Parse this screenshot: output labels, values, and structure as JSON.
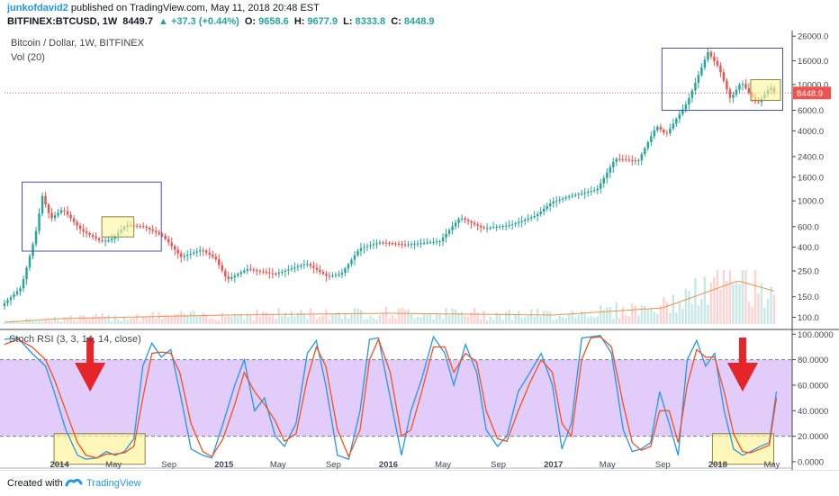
{
  "header": {
    "username": "junkofdavid2",
    "published": "published on TradingView.com, May 11, 2018 20:48 EST",
    "symbol": "BITFINEX:BTCUSD, 1W",
    "last": "8449.7",
    "change": "▲ +37.3 (+0.44%)",
    "o_label": "O:",
    "o": "9658.6",
    "h_label": "H:",
    "h": "9677.9",
    "l_label": "L:",
    "l": "8333.8",
    "c_label": "C:",
    "c": "8448.9"
  },
  "footer": {
    "created_with": "Created with",
    "brand": "TradingView"
  },
  "colors": {
    "up": "#26a69a",
    "down": "#ef5350",
    "rsi_k": "#2196f3",
    "rsi_d": "#f4511e",
    "rsi_band": "#e1ccfa",
    "vol_ma": "#f0904c",
    "box": "#3f51b5",
    "highlight": "#fff59d",
    "arrow": "#e5252a"
  },
  "chart_data": [
    {
      "type": "candlestick",
      "title": "Bitcoin / Dollar, 1W, BITFINEX",
      "subtitle": "Vol (20)",
      "scale": "log",
      "y_ticks": [
        100,
        150,
        250,
        400,
        600,
        1000,
        1600,
        2400,
        4000,
        6000,
        10000,
        16000,
        26000
      ],
      "y_tick_labels": [
        "100.0",
        "150.0",
        "250.0",
        "400.0",
        "600.0",
        "1000.0",
        "1600.0",
        "2400.0",
        "4000.0",
        "6000.0",
        "10000.0",
        "16000.0",
        "26000.0"
      ],
      "last_price": 8448.9,
      "last_price_label": "8448.9",
      "x_labels": [
        "2014",
        "May",
        "Sep",
        "2015",
        "May",
        "Sep",
        "2016",
        "May",
        "Sep",
        "2017",
        "May",
        "Sep",
        "2018",
        "May"
      ],
      "x_label_dates": [
        "2014-01-01",
        "2014-05-01",
        "2014-09-01",
        "2015-01-01",
        "2015-05-01",
        "2015-09-01",
        "2016-01-01",
        "2016-05-01",
        "2016-09-01",
        "2017-01-01",
        "2017-05-01",
        "2017-09-01",
        "2018-01-01",
        "2018-05-01"
      ],
      "x_range": [
        "2013-09-01",
        "2018-06-15"
      ],
      "price_path": [
        [
          "2013-09-01",
          125
        ],
        [
          "2013-10-15",
          180
        ],
        [
          "2013-11-15",
          500
        ],
        [
          "2013-12-01",
          1100
        ],
        [
          "2013-12-20",
          700
        ],
        [
          "2014-01-15",
          850
        ],
        [
          "2014-02-25",
          560
        ],
        [
          "2014-04-10",
          450
        ],
        [
          "2014-05-01",
          460
        ],
        [
          "2014-06-05",
          620
        ],
        [
          "2014-07-15",
          600
        ],
        [
          "2014-08-25",
          500
        ],
        [
          "2014-10-05",
          330
        ],
        [
          "2014-11-20",
          380
        ],
        [
          "2014-12-20",
          320
        ],
        [
          "2015-01-15",
          210
        ],
        [
          "2015-03-01",
          260
        ],
        [
          "2015-05-01",
          235
        ],
        [
          "2015-07-10",
          290
        ],
        [
          "2015-08-25",
          225
        ],
        [
          "2015-09-25",
          235
        ],
        [
          "2015-11-05",
          390
        ],
        [
          "2015-12-20",
          440
        ],
        [
          "2016-02-15",
          420
        ],
        [
          "2016-05-01",
          450
        ],
        [
          "2016-06-15",
          720
        ],
        [
          "2016-08-05",
          580
        ],
        [
          "2016-10-05",
          620
        ],
        [
          "2016-12-01",
          750
        ],
        [
          "2017-01-05",
          980
        ],
        [
          "2017-02-15",
          1100
        ],
        [
          "2017-04-15",
          1250
        ],
        [
          "2017-05-25",
          2300
        ],
        [
          "2017-07-15",
          2200
        ],
        [
          "2017-08-25",
          4400
        ],
        [
          "2017-09-15",
          3700
        ],
        [
          "2017-11-01",
          7000
        ],
        [
          "2017-12-17",
          19000
        ],
        [
          "2018-01-10",
          14000
        ],
        [
          "2018-02-05",
          7500
        ],
        [
          "2018-03-01",
          10500
        ],
        [
          "2018-04-05",
          6800
        ],
        [
          "2018-05-05",
          9600
        ],
        [
          "2018-05-11",
          8449
        ]
      ],
      "volume_ma_path": [
        [
          "2013-09-01",
          1
        ],
        [
          "2014-01-01",
          3
        ],
        [
          "2015-01-01",
          5
        ],
        [
          "2016-01-01",
          6
        ],
        [
          "2017-01-01",
          5
        ],
        [
          "2017-09-01",
          9
        ],
        [
          "2018-02-15",
          24
        ],
        [
          "2018-05-11",
          18
        ]
      ],
      "annotations": [
        {
          "type": "box",
          "from": "2013-10-10",
          "to": "2014-08-15",
          "y_low": 370,
          "y_high": 1450
        },
        {
          "type": "highlight",
          "from": "2014-04-05",
          "to": "2014-06-15",
          "y_low": 490,
          "y_high": 730
        },
        {
          "type": "box",
          "from": "2017-08-30",
          "to": "2018-05-25",
          "y_low": 6000,
          "y_high": 20500
        },
        {
          "type": "highlight",
          "from": "2018-03-15",
          "to": "2018-05-20",
          "y_low": 7300,
          "y_high": 11000
        }
      ]
    },
    {
      "type": "line",
      "title": "Stoch RSI (3, 3, 14, 14, close)",
      "ylim": [
        -5,
        103
      ],
      "band": [
        20,
        80
      ],
      "y_ticks": [
        0,
        20,
        40,
        60,
        80,
        100
      ],
      "y_tick_labels": [
        "0.0000",
        "20.0000",
        "40.0000",
        "60.0000",
        "80.0000",
        "100.0000"
      ],
      "series": [
        {
          "name": "%K",
          "x": [
            "2013-09-01",
            "2013-10-01",
            "2013-11-01",
            "2013-12-01",
            "2013-12-20",
            "2014-01-15",
            "2014-02-10",
            "2014-03-01",
            "2014-03-25",
            "2014-04-15",
            "2014-05-05",
            "2014-05-25",
            "2014-06-15",
            "2014-07-05",
            "2014-07-25",
            "2014-08-15",
            "2014-09-05",
            "2014-09-25",
            "2014-10-20",
            "2014-11-15",
            "2014-12-05",
            "2014-12-30",
            "2015-01-25",
            "2015-02-15",
            "2015-03-10",
            "2015-04-01",
            "2015-04-25",
            "2015-05-15",
            "2015-06-10",
            "2015-07-05",
            "2015-07-25",
            "2015-08-15",
            "2015-09-10",
            "2015-10-05",
            "2015-10-30",
            "2015-11-20",
            "2015-12-10",
            "2016-01-05",
            "2016-01-30",
            "2016-02-20",
            "2016-03-15",
            "2016-04-10",
            "2016-05-05",
            "2016-05-25",
            "2016-06-20",
            "2016-07-15",
            "2016-08-05",
            "2016-08-30",
            "2016-09-20",
            "2016-10-15",
            "2016-11-10",
            "2016-12-05",
            "2016-12-30",
            "2017-01-20",
            "2017-02-10",
            "2017-03-05",
            "2017-03-25",
            "2017-04-15",
            "2017-05-10",
            "2017-06-05",
            "2017-06-25",
            "2017-07-15",
            "2017-08-05",
            "2017-08-25",
            "2017-09-15",
            "2017-10-05",
            "2017-10-25",
            "2017-11-15",
            "2017-12-05",
            "2017-12-25",
            "2018-01-15",
            "2018-02-05",
            "2018-02-25",
            "2018-03-15",
            "2018-04-05",
            "2018-04-25",
            "2018-05-11"
          ],
          "values": [
            96,
            97,
            85,
            75,
            55,
            25,
            5,
            2,
            3,
            8,
            5,
            8,
            18,
            75,
            93,
            82,
            88,
            55,
            10,
            5,
            3,
            30,
            60,
            80,
            40,
            50,
            20,
            12,
            30,
            85,
            95,
            60,
            5,
            2,
            40,
            96,
            97,
            50,
            5,
            40,
            65,
            98,
            85,
            60,
            92,
            70,
            25,
            12,
            20,
            55,
            70,
            85,
            60,
            10,
            30,
            97,
            98,
            99,
            85,
            25,
            8,
            10,
            15,
            55,
            30,
            5,
            80,
            95,
            75,
            85,
            40,
            10,
            5,
            8,
            12,
            15,
            55
          ]
        },
        {
          "name": "%D",
          "x": [
            "2013-09-01",
            "2013-10-01",
            "2013-11-01",
            "2013-12-01",
            "2013-12-20",
            "2014-01-15",
            "2014-02-10",
            "2014-03-01",
            "2014-03-25",
            "2014-04-15",
            "2014-05-05",
            "2014-05-25",
            "2014-06-15",
            "2014-07-05",
            "2014-07-25",
            "2014-08-15",
            "2014-09-05",
            "2014-09-25",
            "2014-10-20",
            "2014-11-15",
            "2014-12-05",
            "2014-12-30",
            "2015-01-25",
            "2015-02-15",
            "2015-03-10",
            "2015-04-01",
            "2015-04-25",
            "2015-05-15",
            "2015-06-10",
            "2015-07-05",
            "2015-07-25",
            "2015-08-15",
            "2015-09-10",
            "2015-10-05",
            "2015-10-30",
            "2015-11-20",
            "2015-12-10",
            "2016-01-05",
            "2016-01-30",
            "2016-02-20",
            "2016-03-15",
            "2016-04-10",
            "2016-05-05",
            "2016-05-25",
            "2016-06-20",
            "2016-07-15",
            "2016-08-05",
            "2016-08-30",
            "2016-09-20",
            "2016-10-15",
            "2016-11-10",
            "2016-12-05",
            "2016-12-30",
            "2017-01-20",
            "2017-02-10",
            "2017-03-05",
            "2017-03-25",
            "2017-04-15",
            "2017-05-10",
            "2017-06-05",
            "2017-06-25",
            "2017-07-15",
            "2017-08-05",
            "2017-08-25",
            "2017-09-15",
            "2017-10-05",
            "2017-10-25",
            "2017-11-15",
            "2017-12-05",
            "2017-12-25",
            "2018-01-15",
            "2018-02-05",
            "2018-02-25",
            "2018-03-15",
            "2018-04-05",
            "2018-04-25",
            "2018-05-11"
          ],
          "values": [
            92,
            96,
            90,
            80,
            65,
            40,
            15,
            5,
            3,
            6,
            6,
            7,
            12,
            50,
            85,
            86,
            85,
            70,
            30,
            8,
            4,
            18,
            45,
            70,
            55,
            45,
            32,
            16,
            22,
            65,
            90,
            75,
            25,
            4,
            25,
            80,
            96,
            70,
            20,
            25,
            55,
            90,
            90,
            70,
            85,
            78,
            40,
            18,
            16,
            40,
            62,
            80,
            70,
            30,
            20,
            80,
            97,
            98,
            90,
            45,
            15,
            9,
            12,
            40,
            40,
            15,
            60,
            88,
            82,
            82,
            55,
            22,
            8,
            7,
            10,
            13,
            50
          ]
        }
      ],
      "annotations": [
        {
          "type": "arrow",
          "date": "2014-03-10",
          "direction": "down"
        },
        {
          "type": "highlight",
          "from": "2013-12-20",
          "to": "2014-07-10",
          "y_low": -2,
          "y_high": 22
        },
        {
          "type": "arrow",
          "date": "2018-02-25",
          "direction": "down"
        },
        {
          "type": "highlight",
          "from": "2017-12-20",
          "to": "2018-05-05",
          "y_low": -2,
          "y_high": 22
        }
      ]
    }
  ]
}
